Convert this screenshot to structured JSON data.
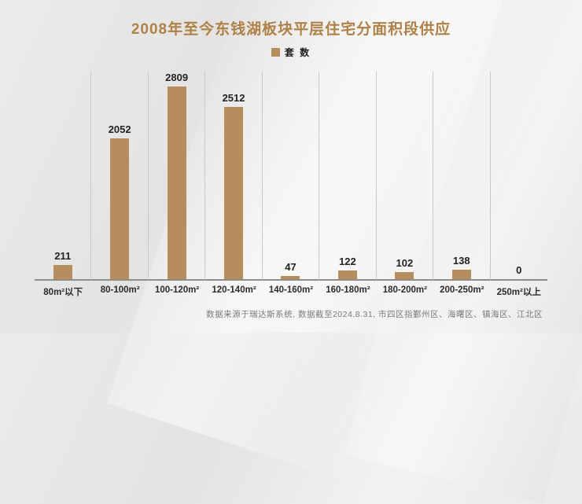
{
  "title": "2008年至今东钱湖板块平层住宅分面积段供应",
  "legend": {
    "label": "套 数"
  },
  "footer_note": "数据来源于瑞达斯系统, 数据截至2024.8.31, 市四区指鄞州区、海曙区、镇海区、江北区",
  "colors": {
    "title": "#ae8148",
    "bar": "#b68d5c",
    "baseline": "#8d8d8d",
    "separator": "#c9c9c9"
  },
  "chart_data": {
    "type": "bar",
    "title": "2008年至今东钱湖板块平层住宅分面积段供应",
    "series_name": "套数",
    "categories": [
      "80m²以下",
      "80-100m²",
      "100-120m²",
      "120-140m²",
      "140-160m²",
      "160-180m²",
      "180-200m²",
      "200-250m²",
      "250m²以上"
    ],
    "values": [
      211,
      2052,
      2809,
      2512,
      47,
      122,
      102,
      138,
      0
    ],
    "xlabel": "",
    "ylabel": "套数",
    "ylim": [
      0,
      2809
    ],
    "grid": "vertical category separators",
    "legend_position": "top",
    "value_labels": true
  }
}
